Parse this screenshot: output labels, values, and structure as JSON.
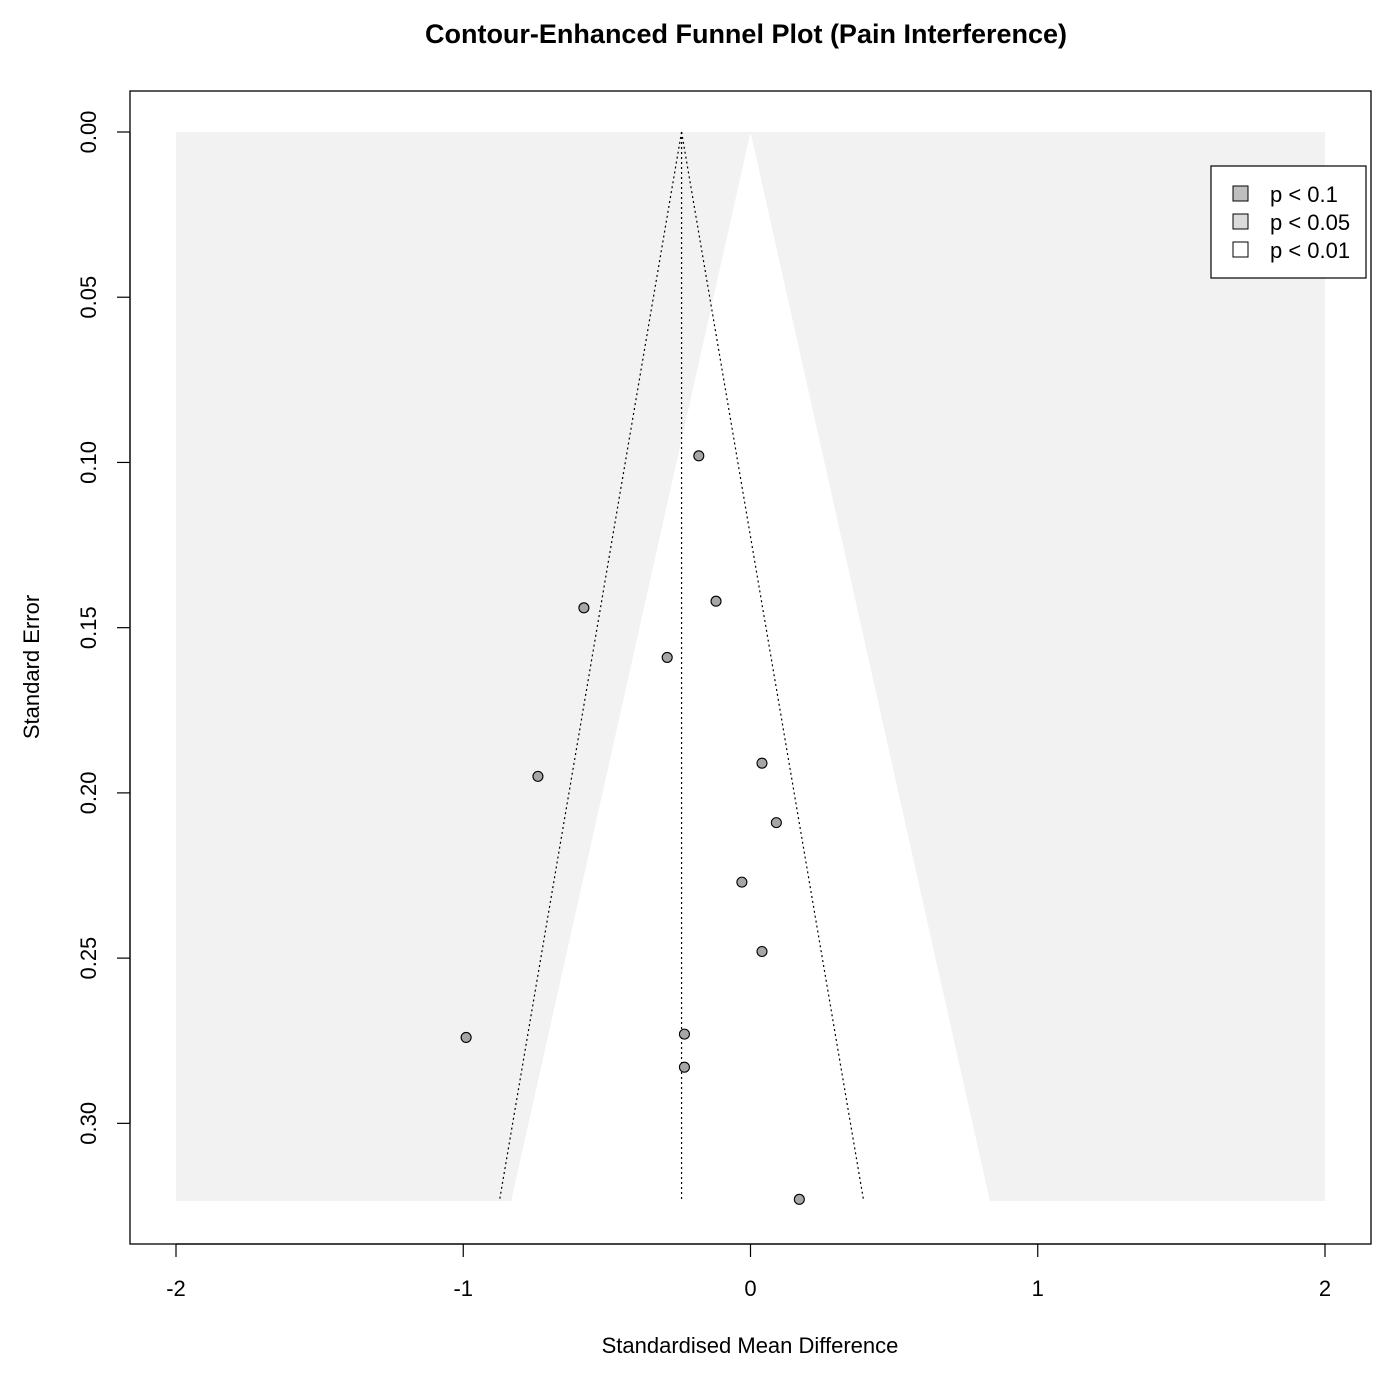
{
  "chart_data": {
    "type": "scatter",
    "title": "Contour-Enhanced Funnel Plot (Pain Interference)",
    "xlabel": "Standardised Mean Difference",
    "ylabel": "Standard Error",
    "xlim": [
      -2,
      2
    ],
    "ylim": [
      0,
      0.3235
    ],
    "y_reversed": true,
    "x_ticks": [
      -2,
      -1,
      0,
      1,
      2
    ],
    "x_tick_labels": [
      "-2",
      "-1",
      "0",
      "1",
      "2"
    ],
    "y_ticks": [
      0,
      0.05,
      0.1,
      0.15,
      0.2,
      0.25,
      0.3
    ],
    "y_tick_labels": [
      "0.00",
      "0.05",
      "0.10",
      "0.15",
      "0.20",
      "0.25",
      "0.30"
    ],
    "summary_estimate": -0.24,
    "contour_levels": [
      {
        "label": "p < 0.1",
        "z": 1.645,
        "color": "#bfbfbf"
      },
      {
        "label": "p < 0.05",
        "z": 1.96,
        "color": "#dbdbdb"
      },
      {
        "label": "p < 0.01",
        "z": 2.576,
        "color": "#ffffff"
      }
    ],
    "background_color": "#f2f2f2",
    "legend_position": "top-right",
    "grid": false,
    "points": [
      {
        "x": -0.18,
        "y": 0.098
      },
      {
        "x": -0.58,
        "y": 0.144
      },
      {
        "x": -0.12,
        "y": 0.142
      },
      {
        "x": -0.29,
        "y": 0.159
      },
      {
        "x": -0.74,
        "y": 0.195
      },
      {
        "x": 0.04,
        "y": 0.191
      },
      {
        "x": 0.09,
        "y": 0.209
      },
      {
        "x": -0.03,
        "y": 0.227
      },
      {
        "x": 0.04,
        "y": 0.248
      },
      {
        "x": -0.99,
        "y": 0.274
      },
      {
        "x": -0.23,
        "y": 0.273
      },
      {
        "x": -0.23,
        "y": 0.283
      },
      {
        "x": 0.17,
        "y": 0.323
      }
    ]
  }
}
